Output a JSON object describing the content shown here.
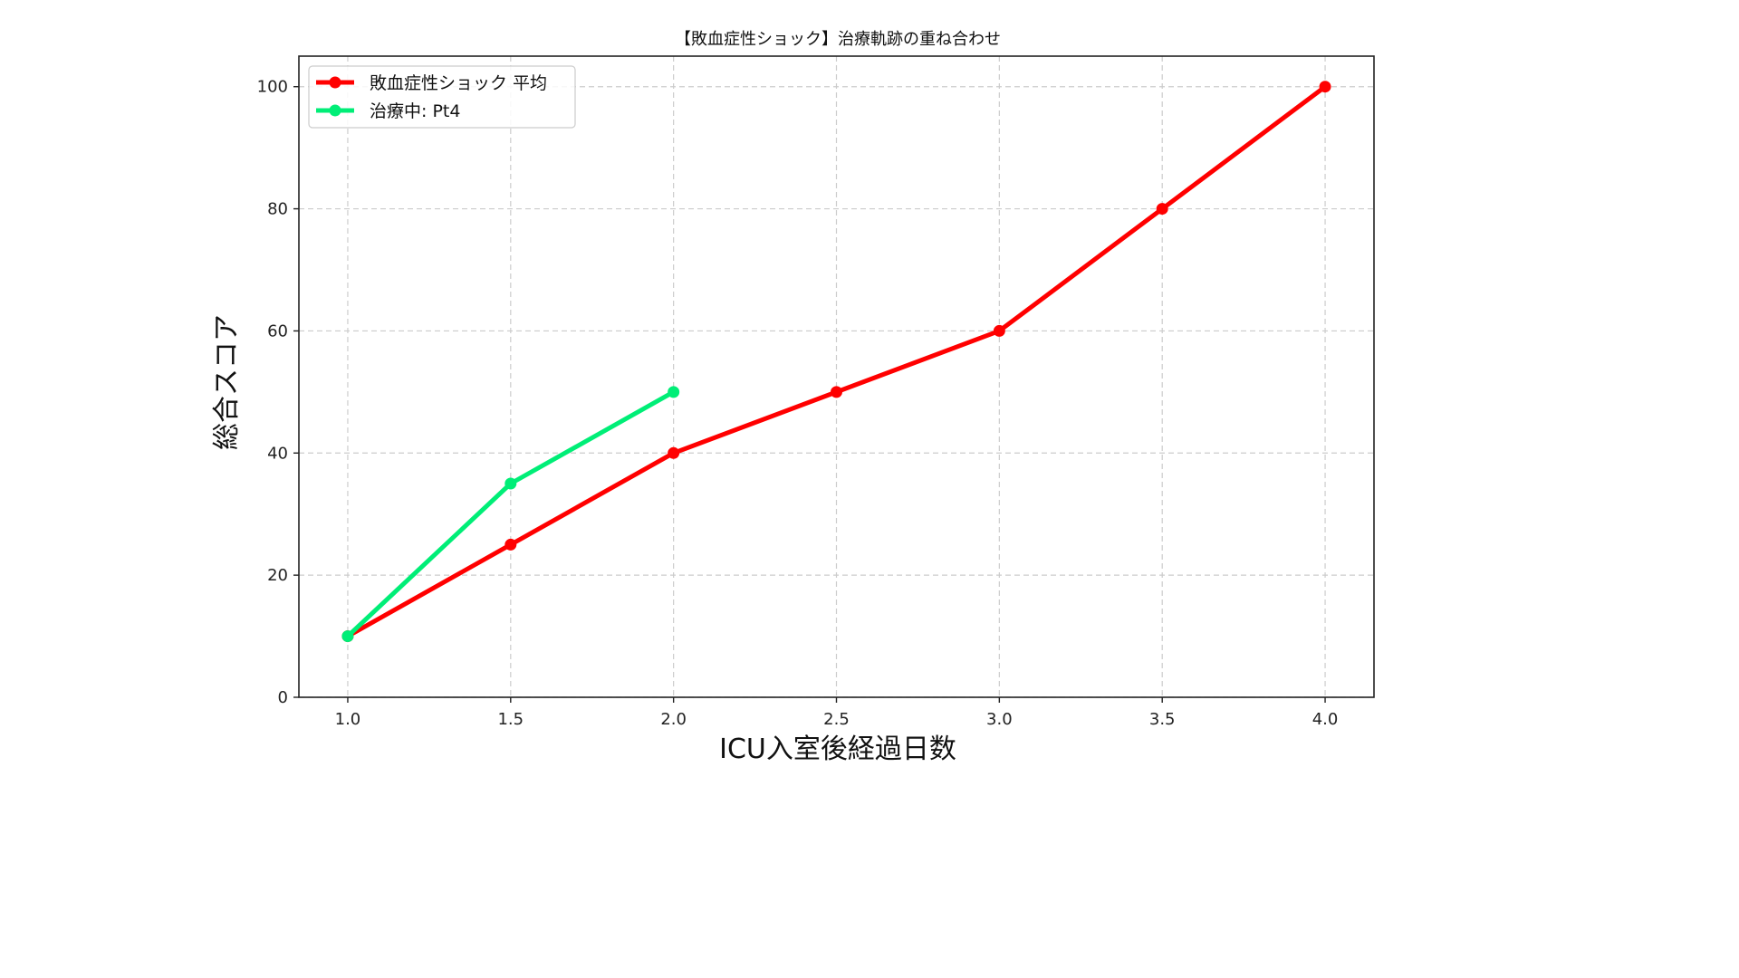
{
  "chart_data": {
    "type": "line",
    "title": "【敗血症性ショック】治療軌跡の重ね合わせ",
    "xlabel": "ICU入室後経過日数",
    "ylabel": "総合スコア",
    "xlim": [
      0.85,
      4.15
    ],
    "ylim": [
      0,
      105
    ],
    "xticks": [
      1.0,
      1.5,
      2.0,
      2.5,
      3.0,
      3.5,
      4.0
    ],
    "xtick_labels": [
      "1.0",
      "1.5",
      "2.0",
      "2.5",
      "3.0",
      "3.5",
      "4.0"
    ],
    "yticks": [
      0,
      20,
      40,
      60,
      80,
      100
    ],
    "ytick_labels": [
      "0",
      "20",
      "40",
      "60",
      "80",
      "100"
    ],
    "grid": true,
    "legend_position": "top-left",
    "series": [
      {
        "name": "敗血症性ショック 平均",
        "color": "#ff0000",
        "x": [
          1.0,
          1.5,
          2.0,
          2.5,
          3.0,
          3.5,
          4.0
        ],
        "y": [
          10,
          25,
          40,
          50,
          60,
          80,
          100
        ]
      },
      {
        "name": "治療中: Pt4",
        "color": "#00ee77",
        "x": [
          1.0,
          1.5,
          2.0
        ],
        "y": [
          10,
          35,
          50
        ]
      }
    ]
  }
}
